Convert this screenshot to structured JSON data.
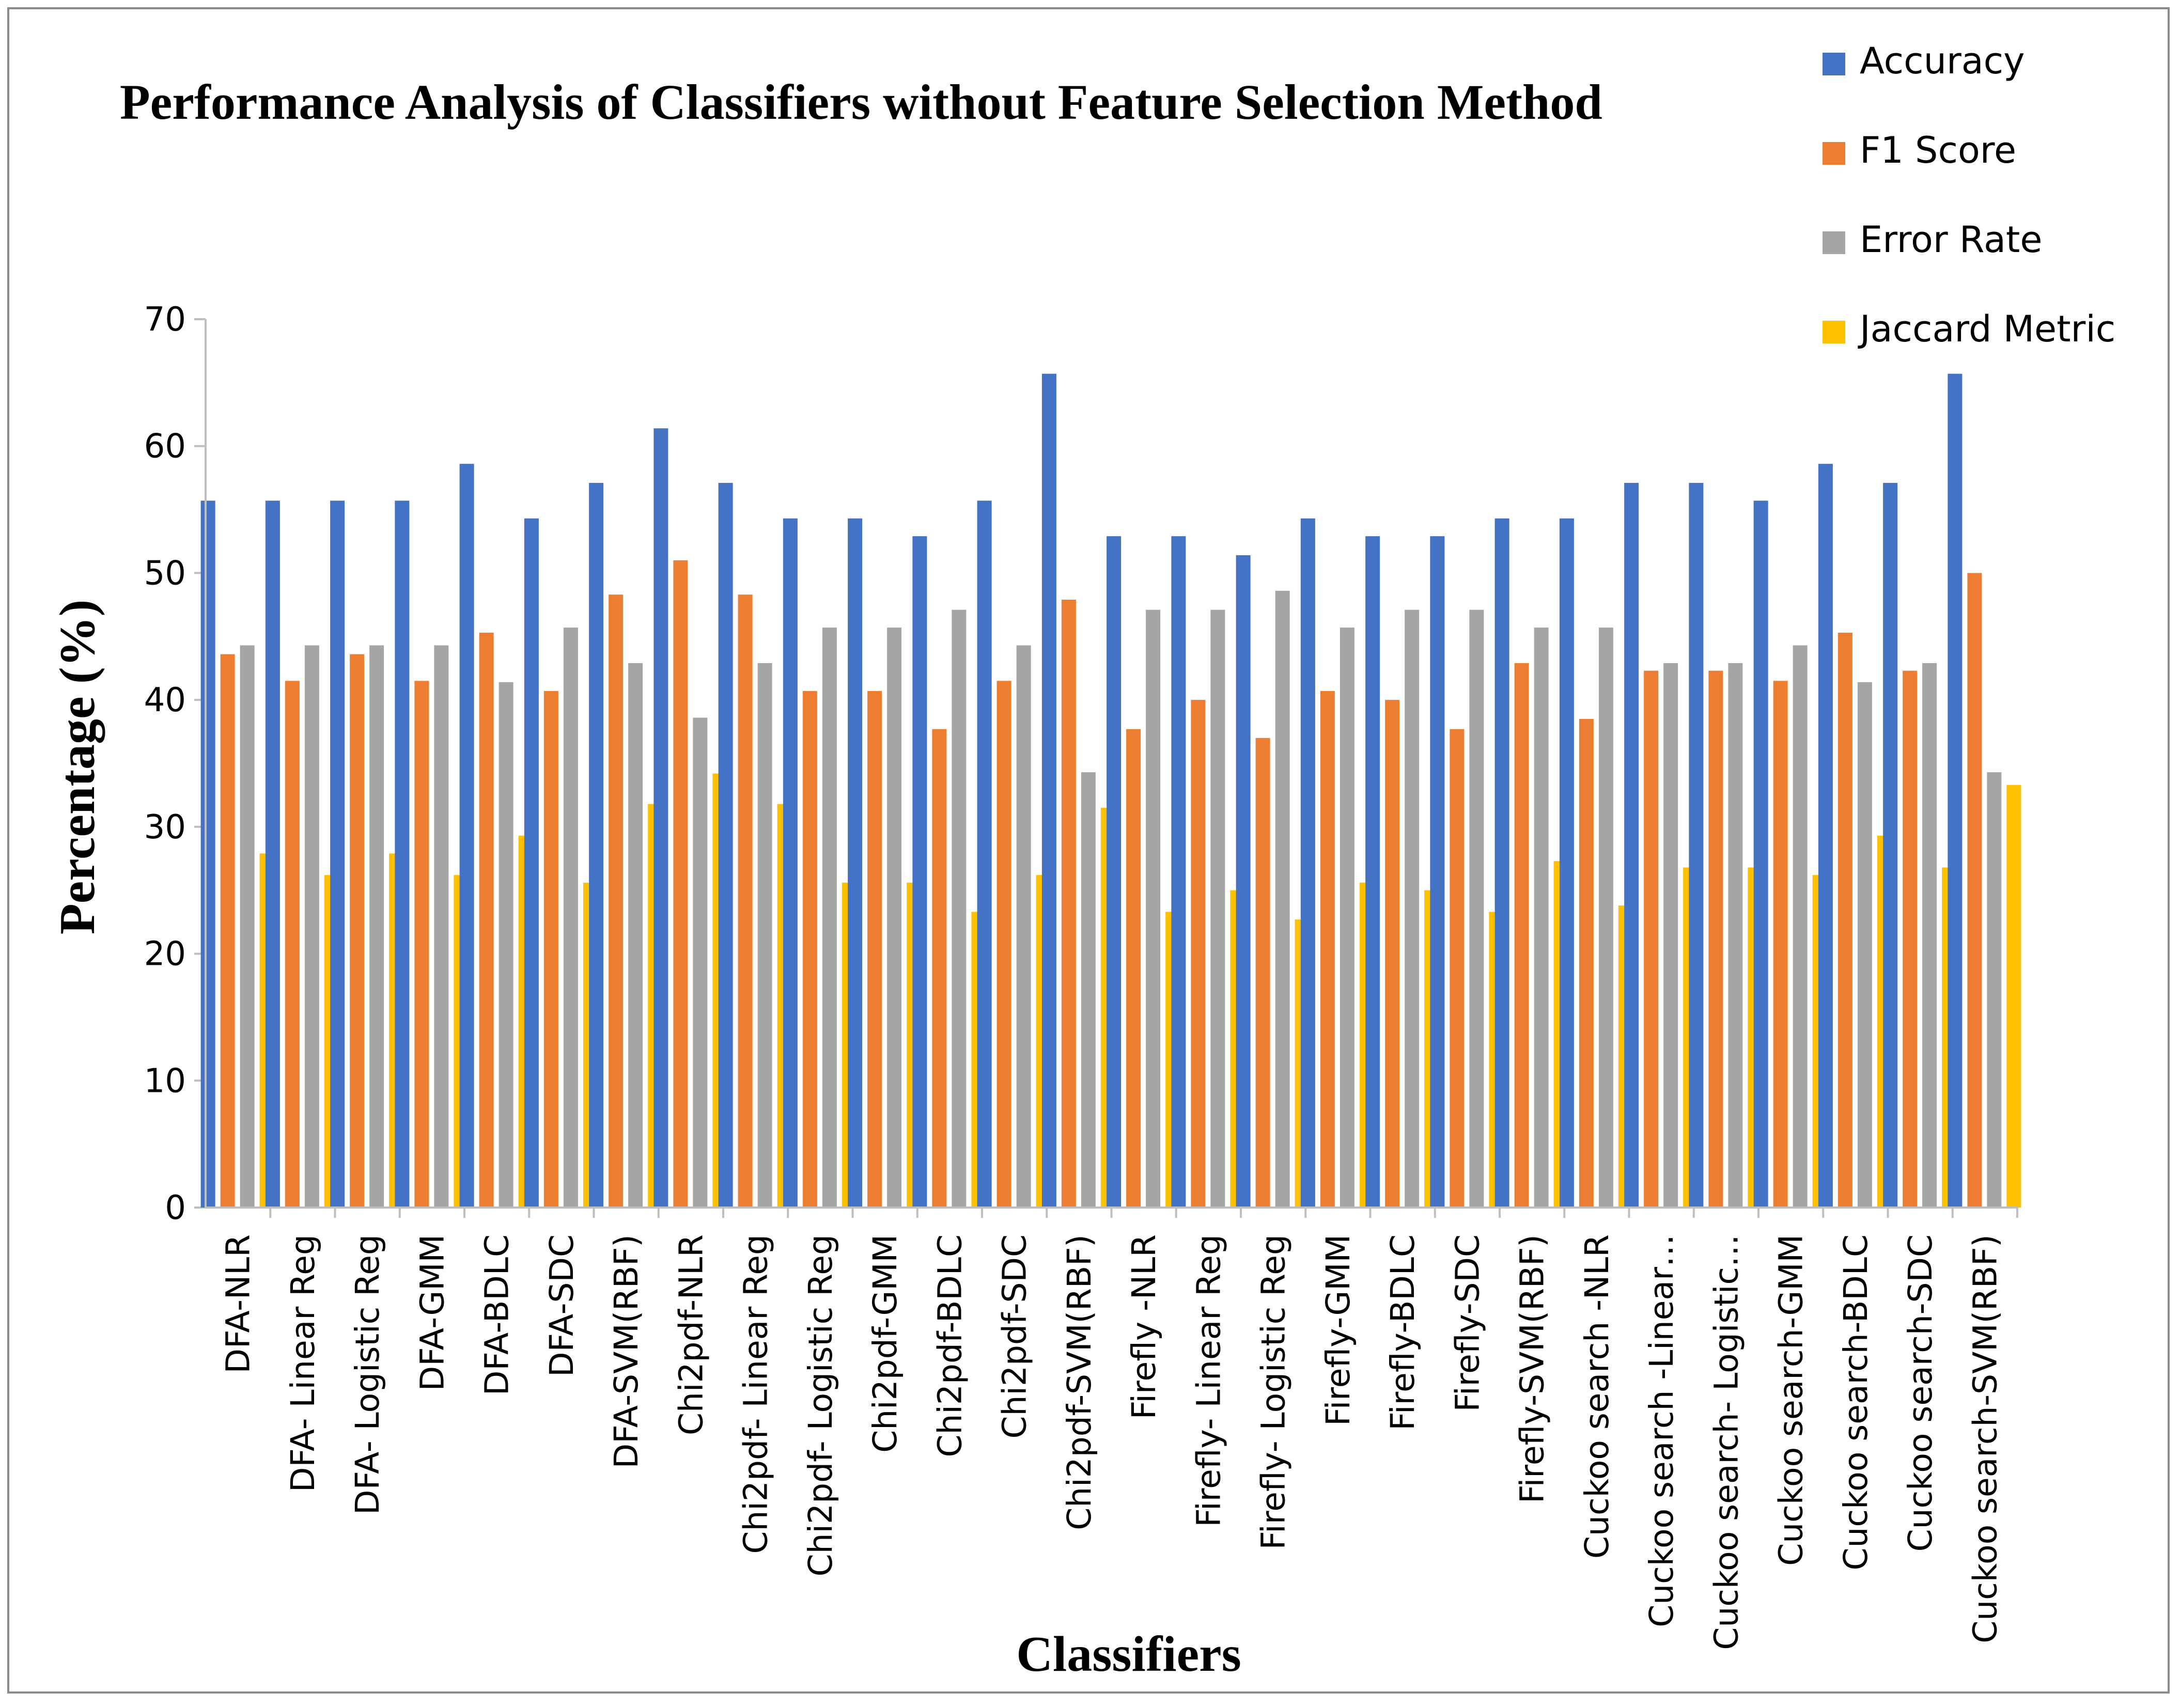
{
  "chart_data": {
    "type": "bar",
    "title": "Performance Analysis of Classifiers without Feature Selection Method",
    "xlabel": "Classifiers",
    "ylabel": "Percentage (%)",
    "ylim": [
      0,
      70
    ],
    "yticks": [
      0,
      10,
      20,
      30,
      40,
      50,
      60,
      70
    ],
    "grid": false,
    "legend_position": "top-right",
    "categories": [
      "DFA-NLR",
      "DFA- Linear Reg",
      "DFA- Logistic Reg",
      "DFA-GMM",
      "DFA-BDLC",
      "DFA-SDC",
      "DFA-SVM(RBF)",
      "Chi2pdf-NLR",
      "Chi2pdf- Linear Reg",
      "Chi2pdf- Logistic Reg",
      "Chi2pdf-GMM",
      "Chi2pdf-BDLC",
      "Chi2pdf-SDC",
      "Chi2pdf-SVM(RBF)",
      "Firefly -NLR",
      "Firefly- Linear Reg",
      "Firefly- Logistic Reg",
      "Firefly-GMM",
      "Firefly-BDLC",
      "Firefly-SDC",
      "Firefly-SVM(RBF)",
      "Cuckoo search -NLR",
      "Cuckoo search -Linear…",
      "Cuckoo search- Logistic…",
      "Cuckoo search-GMM",
      "Cuckoo search-BDLC",
      "Cuckoo search-SDC",
      "Cuckoo search-SVM(RBF)"
    ],
    "series": [
      {
        "name": "Accuracy",
        "color": "#4472C4",
        "values": [
          55.7,
          55.7,
          55.7,
          55.7,
          58.6,
          54.3,
          57.1,
          61.4,
          57.1,
          54.3,
          54.3,
          52.9,
          55.7,
          65.7,
          52.9,
          52.9,
          51.4,
          54.3,
          52.9,
          52.9,
          54.3,
          54.3,
          57.1,
          57.1,
          55.7,
          58.6,
          57.1,
          65.7
        ]
      },
      {
        "name": "F1 Score",
        "color": "#ED7D31",
        "values": [
          43.6,
          41.5,
          43.6,
          41.5,
          45.3,
          40.7,
          48.3,
          51.0,
          48.3,
          40.7,
          40.7,
          37.7,
          41.5,
          47.9,
          37.7,
          40.0,
          37.0,
          40.7,
          40.0,
          37.7,
          42.9,
          38.5,
          42.3,
          42.3,
          41.5,
          45.3,
          42.3,
          50.0
        ]
      },
      {
        "name": "Error Rate",
        "color": "#A5A5A5",
        "values": [
          44.3,
          44.3,
          44.3,
          44.3,
          41.4,
          45.7,
          42.9,
          38.6,
          42.9,
          45.7,
          45.7,
          47.1,
          44.3,
          34.3,
          47.1,
          47.1,
          48.6,
          45.7,
          47.1,
          47.1,
          45.7,
          45.7,
          42.9,
          42.9,
          44.3,
          41.4,
          42.9,
          34.3
        ]
      },
      {
        "name": "Jaccard Metric",
        "color": "#FFC000",
        "values": [
          27.9,
          26.2,
          27.9,
          26.2,
          29.3,
          25.6,
          31.8,
          34.2,
          31.8,
          25.6,
          25.6,
          23.3,
          26.2,
          31.5,
          23.3,
          25.0,
          22.7,
          25.6,
          25.0,
          23.3,
          27.3,
          23.8,
          26.8,
          26.8,
          26.2,
          29.3,
          26.8,
          33.3
        ]
      }
    ]
  }
}
